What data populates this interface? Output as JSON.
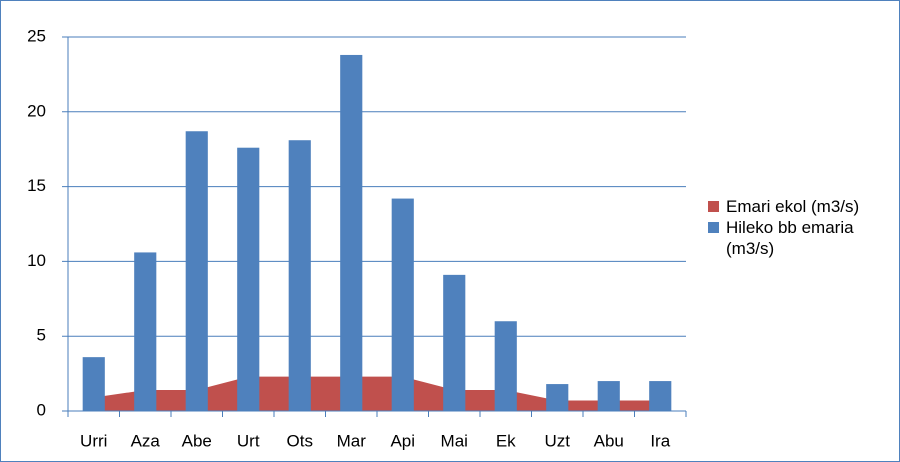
{
  "chart_data": {
    "type": "bar",
    "categories": [
      "Urri",
      "Aza",
      "Abe",
      "Urt",
      "Ots",
      "Mar",
      "Api",
      "Mai",
      "Ek",
      "Uzt",
      "Abu",
      "Ira"
    ],
    "series": [
      {
        "name": "Emari ekol (m3/s)",
        "type": "area",
        "color": "#c0504d",
        "values": [
          0.9,
          1.4,
          1.4,
          2.3,
          2.3,
          2.3,
          2.3,
          1.4,
          1.4,
          0.7,
          0.7,
          0.7
        ]
      },
      {
        "name": "Hileko bb emaria (m3/s)",
        "type": "bar",
        "color": "#4f81bd",
        "values": [
          3.6,
          10.6,
          18.7,
          17.6,
          18.1,
          23.8,
          14.2,
          9.1,
          6.0,
          1.8,
          2.0,
          2.0
        ]
      }
    ],
    "ylim": [
      0,
      25
    ],
    "yticks": [
      0,
      5,
      10,
      15,
      20,
      25
    ],
    "grid": true,
    "legend": "right"
  }
}
